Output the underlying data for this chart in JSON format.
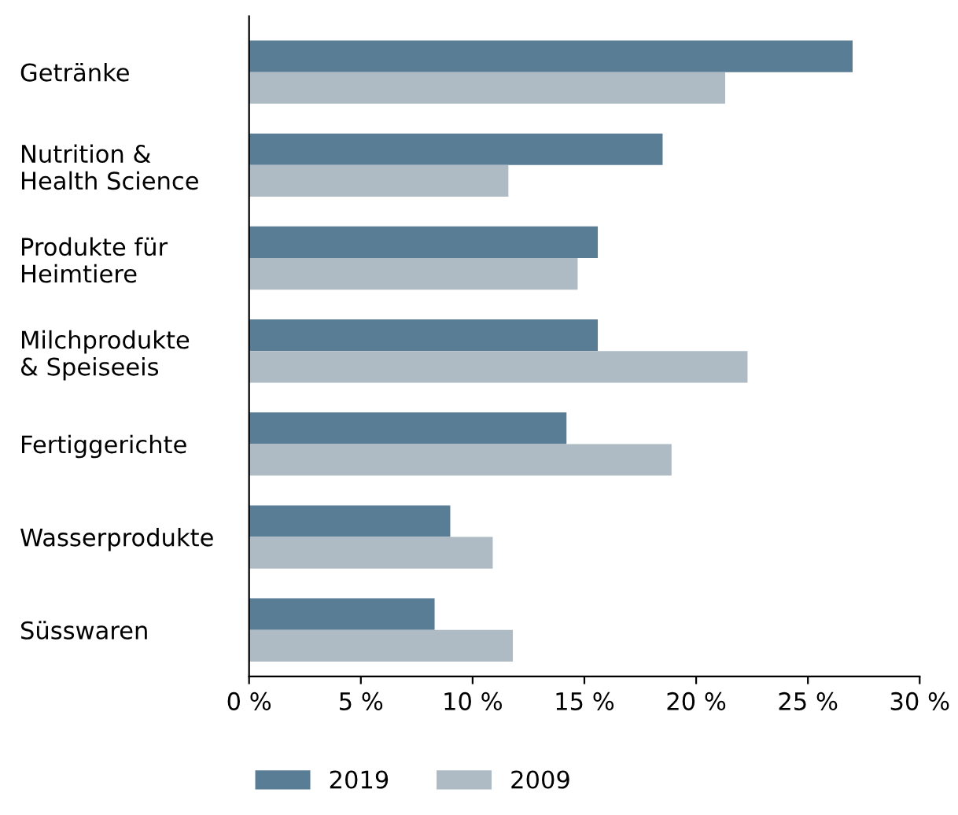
{
  "chart_data": {
    "type": "bar",
    "orientation": "horizontal",
    "categories": [
      "Getränke",
      "Nutrition &\nHealth Science",
      "Produkte für\nHeimtiere",
      "Milchprodukte\n& Speiseeis",
      "Fertiggerichte",
      "Wasserprodukte",
      "Süsswaren"
    ],
    "series": [
      {
        "name": "2019",
        "color": "#5a7d96",
        "values": [
          27.0,
          18.5,
          15.6,
          15.6,
          14.2,
          9.0,
          8.3
        ]
      },
      {
        "name": "2009",
        "color": "#aebbc4",
        "values": [
          21.3,
          11.6,
          14.7,
          22.3,
          18.9,
          10.9,
          11.8
        ]
      }
    ],
    "xlim": [
      0,
      30
    ],
    "xticks": [
      {
        "value": 0,
        "label": "0 %"
      },
      {
        "value": 5,
        "label": "5 %"
      },
      {
        "value": 10,
        "label": "10 %"
      },
      {
        "value": 15,
        "label": "15 %"
      },
      {
        "value": 20,
        "label": "20 %"
      },
      {
        "value": 25,
        "label": "25 %"
      },
      {
        "value": 30,
        "label": "30 %"
      }
    ],
    "grid": false,
    "legend": "bottom"
  }
}
